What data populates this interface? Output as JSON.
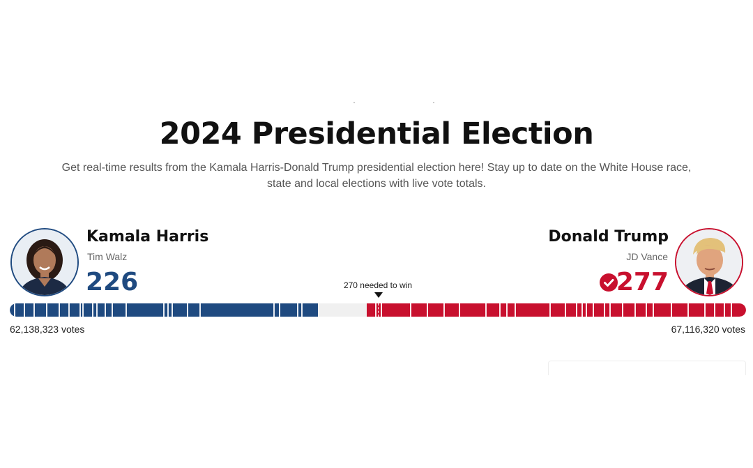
{
  "page": {
    "title": "2024 Presidential Election",
    "subtitle_line1": "Get real-time results from the Kamala Harris-Donald Trump presidential election here! Stay up to date on the White House race,",
    "subtitle_line2": "state and local elections with live vote totals."
  },
  "race": {
    "needed_label": "270 needed to win",
    "democrat": {
      "name": "Kamala Harris",
      "running_mate": "Tim Walz",
      "electoral_votes": "226",
      "votes_label": "62,138,323 votes",
      "color": "#1f4a80"
    },
    "republican": {
      "name": "Donald Trump",
      "running_mate": "JD Vance",
      "electoral_votes": "277",
      "votes_label": "67,116,320 votes",
      "color": "#c8102e",
      "winner": true
    }
  },
  "icons": {
    "winner": "check-circle-icon",
    "needed_marker": "caret-down-icon"
  }
}
